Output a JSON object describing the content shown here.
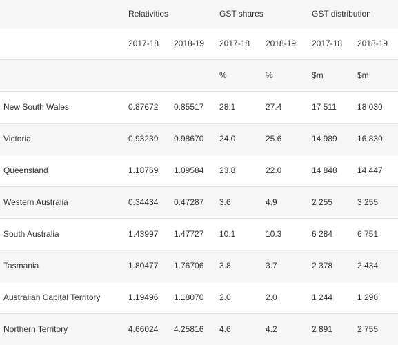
{
  "header": {
    "groups": [
      "Relativities",
      "GST shares",
      "GST distribution"
    ],
    "years": [
      "2017-18",
      "2018-19",
      "2017-18",
      "2018-19",
      "2017-18",
      "2018-19"
    ],
    "units": [
      "",
      "",
      "%",
      "%",
      "$m",
      "$m"
    ]
  },
  "rows": [
    {
      "state": "New South Wales",
      "values": [
        "0.87672",
        "0.85517",
        "28.1",
        "27.4",
        "17 511",
        "18 030"
      ]
    },
    {
      "state": "Victoria",
      "values": [
        "0.93239",
        "0.98670",
        "24.0",
        "25.6",
        "14 989",
        "16 830"
      ]
    },
    {
      "state": "Queensland",
      "values": [
        "1.18769",
        "1.09584",
        "23.8",
        "22.0",
        "14 848",
        "14 447"
      ]
    },
    {
      "state": "Western Australia",
      "values": [
        "0.34434",
        "0.47287",
        "3.6",
        "4.9",
        "2 255",
        "3 255"
      ]
    },
    {
      "state": "South Australia",
      "values": [
        "1.43997",
        "1.47727",
        "10.1",
        "10.3",
        "6 284",
        "6 751"
      ]
    },
    {
      "state": "Tasmania",
      "values": [
        "1.80477",
        "1.76706",
        "3.8",
        "3.7",
        "2 378",
        "2 434"
      ]
    },
    {
      "state": "Australian Capital Territory",
      "values": [
        "1.19496",
        "1.18070",
        "2.0",
        "2.0",
        "1 244",
        "1 298"
      ]
    },
    {
      "state": "Northern Territory",
      "values": [
        "4.66024",
        "4.25816",
        "4.6",
        "4.2",
        "2 891",
        "2 755"
      ]
    }
  ]
}
